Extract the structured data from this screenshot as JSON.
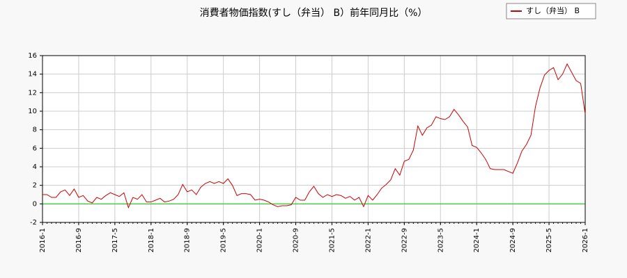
{
  "chart_data": {
    "type": "line",
    "title": "消費者物価指数(すし（弁当） B）前年同月比（%）",
    "x": [
      "2016-1",
      "2016-2",
      "2016-3",
      "2016-4",
      "2016-5",
      "2016-6",
      "2016-7",
      "2016-8",
      "2016-9",
      "2016-10",
      "2016-11",
      "2016-12",
      "2017-1",
      "2017-2",
      "2017-3",
      "2017-4",
      "2017-5",
      "2017-6",
      "2017-7",
      "2017-8",
      "2017-9",
      "2017-10",
      "2017-11",
      "2017-12",
      "2018-1",
      "2018-2",
      "2018-3",
      "2018-4",
      "2018-5",
      "2018-6",
      "2018-7",
      "2018-8",
      "2018-9",
      "2018-10",
      "2018-11",
      "2018-12",
      "2019-1",
      "2019-2",
      "2019-3",
      "2019-4",
      "2019-5",
      "2019-6",
      "2019-7",
      "2019-8",
      "2019-9",
      "2019-10",
      "2019-11",
      "2019-12",
      "2020-1",
      "2020-2",
      "2020-3",
      "2020-4",
      "2020-5",
      "2020-6",
      "2020-7",
      "2020-8",
      "2020-9",
      "2020-10",
      "2020-11",
      "2020-12",
      "2021-1",
      "2021-2",
      "2021-3",
      "2021-4",
      "2021-5",
      "2021-6",
      "2021-7",
      "2021-8",
      "2021-9",
      "2021-10",
      "2021-11",
      "2021-12",
      "2022-1",
      "2022-2",
      "2022-3",
      "2022-4",
      "2022-5",
      "2022-6",
      "2022-7",
      "2022-8",
      "2022-9",
      "2022-10",
      "2022-11",
      "2022-12",
      "2023-1",
      "2023-2",
      "2023-3",
      "2023-4",
      "2023-5",
      "2023-6",
      "2023-7",
      "2023-8",
      "2023-9",
      "2023-10",
      "2023-11",
      "2023-12",
      "2024-1",
      "2024-2",
      "2024-3",
      "2024-4",
      "2024-5",
      "2024-6",
      "2024-7",
      "2024-8",
      "2024-9",
      "2024-10",
      "2024-11",
      "2024-12",
      "2025-1",
      "2025-2",
      "2025-3",
      "2025-4",
      "2025-5",
      "2025-6",
      "2025-7",
      "2025-8",
      "2025-9",
      "2025-10",
      "2025-11",
      "2025-12",
      "2026-1"
    ],
    "series": [
      {
        "name": "すし（弁当） B",
        "color": "#cc0000",
        "values": [
          1.0,
          1.0,
          0.7,
          0.7,
          1.3,
          1.5,
          0.9,
          1.6,
          0.7,
          0.9,
          0.3,
          0.1,
          0.7,
          0.5,
          0.9,
          1.2,
          1.0,
          0.8,
          1.2,
          -0.4,
          0.7,
          0.5,
          1.0,
          0.2,
          0.2,
          0.4,
          0.6,
          0.2,
          0.3,
          0.5,
          1.0,
          2.1,
          1.3,
          1.5,
          1.0,
          1.8,
          2.2,
          2.4,
          2.2,
          2.4,
          2.2,
          2.7,
          2.0,
          0.9,
          1.1,
          1.1,
          1.0,
          0.4,
          0.5,
          0.4,
          0.2,
          -0.1,
          -0.3,
          -0.2,
          -0.2,
          -0.1,
          0.7,
          0.4,
          0.4,
          1.3,
          1.9,
          1.1,
          0.7,
          1.0,
          0.8,
          1.0,
          0.9,
          0.6,
          0.8,
          0.4,
          0.7,
          -0.3,
          0.9,
          0.4,
          1.0,
          1.7,
          2.1,
          2.6,
          3.8,
          3.1,
          4.6,
          4.8,
          5.8,
          8.4,
          7.4,
          8.2,
          8.5,
          9.4,
          9.2,
          9.1,
          9.4,
          10.2,
          9.6,
          8.9,
          8.3,
          6.3,
          6.1,
          5.5,
          4.8,
          3.8,
          3.7,
          3.7,
          3.7,
          3.5,
          3.3,
          4.4,
          5.7,
          6.4,
          7.4,
          10.5,
          12.5,
          13.9,
          14.4,
          14.7,
          13.4,
          14.0,
          15.1,
          14.2,
          13.3,
          13.0,
          9.7
        ]
      }
    ],
    "xlim": [
      "2016-1",
      "2026-1"
    ],
    "xticks": [
      "2016-1",
      "2016-9",
      "2017-5",
      "2018-1",
      "2018-9",
      "2019-5",
      "2020-1",
      "2020-9",
      "2021-5",
      "2022-1",
      "2022-9",
      "2023-5",
      "2024-1",
      "2024-9",
      "2025-5",
      "2026-1"
    ],
    "ylim": [
      -2,
      16
    ],
    "yticks": [
      -2,
      0,
      2,
      4,
      6,
      8,
      10,
      12,
      14,
      16
    ],
    "hline": {
      "value": 0,
      "color": "#00cc00"
    },
    "grid": true,
    "legend": "upper right"
  }
}
